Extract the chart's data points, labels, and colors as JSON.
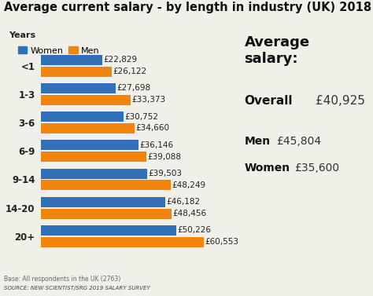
{
  "title": "Average current salary - by length in industry (UK) 2018",
  "categories": [
    "20+",
    "14-20",
    "9-14",
    "6-9",
    "3-6",
    "1-3",
    "<1"
  ],
  "women_values": [
    50226,
    46182,
    39503,
    36146,
    30752,
    27698,
    22829
  ],
  "men_values": [
    60553,
    48456,
    48249,
    39088,
    34660,
    33373,
    26122
  ],
  "women_labels": [
    "£50,226",
    "£46,182",
    "£39,503",
    "£36,146",
    "£30,752",
    "£27,698",
    "£22,829"
  ],
  "men_labels": [
    "£60,553",
    "£48,456",
    "£48,249",
    "£39,088",
    "£34,660",
    "£33,373",
    "£26,122"
  ],
  "women_color": "#3070b8",
  "men_color": "#f0840c",
  "background_color": "#f0efe8",
  "title_fontsize": 10.5,
  "bar_label_fontsize": 7.5,
  "avg_salary_title": "Average\nsalary:",
  "avg_overall_label": "Overall",
  "avg_overall_value": "£40,925",
  "avg_men_label": "Men",
  "avg_men_value": "£45,804",
  "avg_women_label": "Women",
  "avg_women_value": "£35,600",
  "footnote1": "Base: All respondents in the UK (2763)",
  "footnote2": "SOURCE: NEW SCIENTIST/SRG 2019 SALARY SURVEY",
  "years_label": "Years",
  "xlim": [
    0,
    72000
  ]
}
